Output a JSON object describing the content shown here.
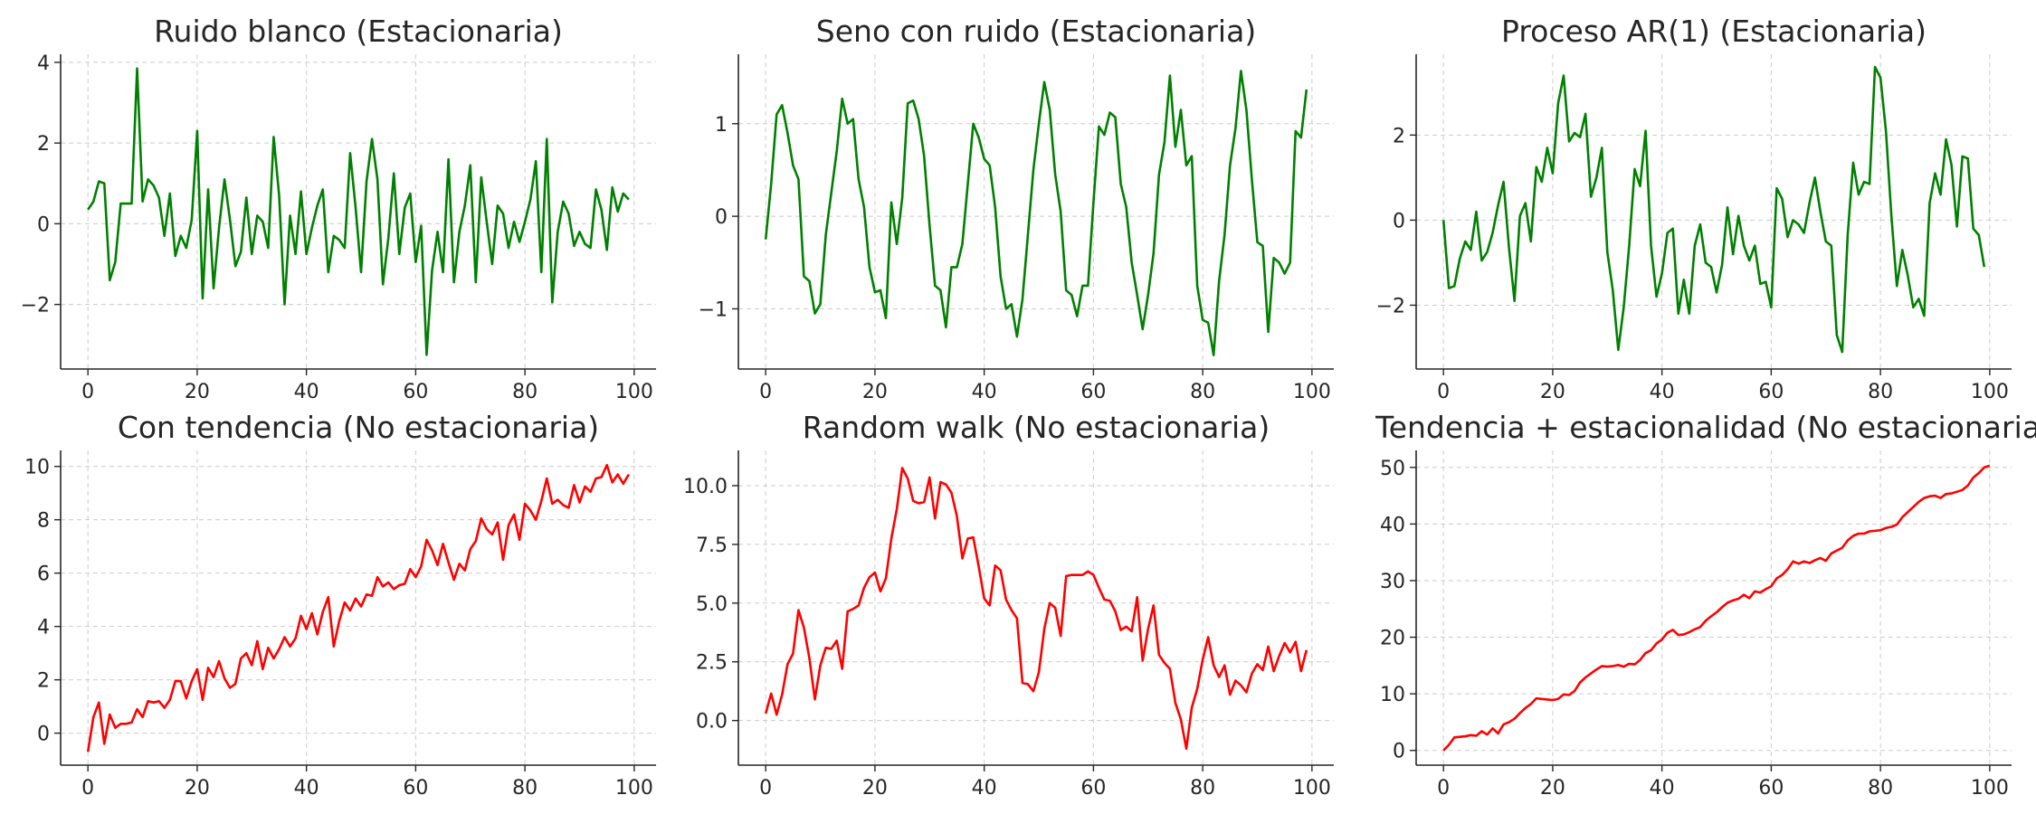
{
  "colors": {
    "stationary": "#008000",
    "non_stationary": "#ff0000",
    "grid": "#cccccc",
    "axis": "#262626"
  },
  "chart_data": [
    {
      "type": "line",
      "title": "Ruido blanco (Estacionaria)",
      "color": "#008000",
      "xlim": [
        -5,
        104
      ],
      "ylim": [
        -3.6,
        4.2
      ],
      "xticks": [
        0,
        20,
        40,
        60,
        80,
        100
      ],
      "yticks": [
        -2,
        0,
        2,
        4
      ],
      "ytick_labels": [
        "−2",
        "0",
        "2",
        "4"
      ],
      "grid": true,
      "series": [
        {
          "y": [
            0.35,
            0.55,
            1.05,
            1.0,
            -1.4,
            -0.95,
            0.5,
            0.5,
            0.5,
            3.85,
            0.55,
            1.1,
            0.95,
            0.65,
            -0.3,
            0.75,
            -0.8,
            -0.3,
            -0.6,
            0.1,
            2.3,
            -1.85,
            0.85,
            -1.6,
            -0.1,
            1.1,
            0.1,
            -1.05,
            -0.7,
            0.65,
            -0.75,
            0.2,
            0.05,
            -0.6,
            2.15,
            0.7,
            -2.0,
            0.2,
            -0.75,
            0.8,
            -0.75,
            -0.1,
            0.45,
            0.85,
            -1.2,
            -0.3,
            -0.4,
            -0.6,
            1.75,
            0.4,
            -1.2,
            1.05,
            2.1,
            1.1,
            -1.5,
            -0.35,
            1.25,
            -0.75,
            0.4,
            0.75,
            -0.95,
            -0.05,
            -3.25,
            -1.15,
            -0.2,
            -1.2,
            1.6,
            -1.45,
            -0.2,
            0.45,
            1.45,
            -1.45,
            1.15,
            0.05,
            -1.0,
            0.45,
            0.25,
            -0.6,
            0.05,
            -0.45,
            0.05,
            0.6,
            1.55,
            -1.2,
            2.1,
            -1.95,
            -0.2,
            0.55,
            0.25,
            -0.55,
            -0.2,
            -0.5,
            -0.6,
            0.85,
            0.35,
            -0.65,
            0.9,
            0.3,
            0.75,
            0.6
          ]
        }
      ]
    },
    {
      "type": "line",
      "title": "Seno con ruido (Estacionaria)",
      "color": "#008000",
      "xlim": [
        -5,
        104
      ],
      "ylim": [
        -1.65,
        1.75
      ],
      "xticks": [
        0,
        20,
        40,
        60,
        80,
        100
      ],
      "yticks": [
        -1,
        0,
        1
      ],
      "ytick_labels": [
        "−1",
        "0",
        "1"
      ],
      "grid": true,
      "series": [
        {
          "y": [
            -0.25,
            0.35,
            1.1,
            1.2,
            0.9,
            0.55,
            0.4,
            -0.65,
            -0.7,
            -1.05,
            -0.95,
            -0.2,
            0.25,
            0.7,
            1.27,
            1.0,
            1.05,
            0.4,
            0.1,
            -0.55,
            -0.82,
            -0.8,
            -1.1,
            0.15,
            -0.3,
            0.2,
            1.22,
            1.25,
            1.05,
            0.65,
            -0.1,
            -0.75,
            -0.8,
            -1.2,
            -0.55,
            -0.55,
            -0.3,
            0.35,
            1.0,
            0.85,
            0.62,
            0.55,
            0.1,
            -0.65,
            -1.0,
            -0.95,
            -1.3,
            -0.9,
            -0.2,
            0.5,
            1.0,
            1.45,
            1.15,
            0.45,
            0.05,
            -0.8,
            -0.85,
            -1.08,
            -0.75,
            -0.75,
            0.15,
            0.97,
            0.88,
            1.12,
            1.07,
            0.35,
            0.1,
            -0.5,
            -0.85,
            -1.22,
            -0.85,
            -0.4,
            0.45,
            0.8,
            1.52,
            0.75,
            1.15,
            0.55,
            0.65,
            -0.75,
            -1.12,
            -1.15,
            -1.5,
            -0.7,
            -0.2,
            0.55,
            0.95,
            1.57,
            1.15,
            0.4,
            -0.28,
            -0.32,
            -1.25,
            -0.45,
            -0.5,
            -0.62,
            -0.5,
            0.92,
            0.85,
            1.37
          ]
        }
      ]
    },
    {
      "type": "line",
      "title": "Proceso AR(1) (Estacionaria)",
      "color": "#008000",
      "xlim": [
        -5,
        104
      ],
      "ylim": [
        -3.5,
        3.9
      ],
      "xticks": [
        0,
        20,
        40,
        60,
        80,
        100
      ],
      "yticks": [
        -2,
        0,
        2
      ],
      "ytick_labels": [
        "−2",
        "0",
        "2"
      ],
      "grid": true,
      "series": [
        {
          "y": [
            0.0,
            -1.6,
            -1.55,
            -0.9,
            -0.5,
            -0.7,
            0.2,
            -0.95,
            -0.75,
            -0.3,
            0.35,
            0.9,
            -0.65,
            -1.9,
            0.1,
            0.4,
            -0.5,
            1.25,
            0.9,
            1.7,
            1.1,
            2.75,
            3.4,
            1.85,
            2.05,
            1.95,
            2.5,
            0.55,
            1.0,
            1.7,
            -0.75,
            -1.65,
            -3.05,
            -2.05,
            -0.6,
            1.2,
            0.8,
            2.1,
            -0.6,
            -1.8,
            -1.25,
            -0.3,
            -0.2,
            -2.2,
            -1.4,
            -2.2,
            -0.6,
            -0.1,
            -1.0,
            -1.1,
            -1.7,
            -1.05,
            0.3,
            -0.8,
            0.1,
            -0.6,
            -0.95,
            -0.6,
            -1.5,
            -1.45,
            -2.05,
            0.75,
            0.5,
            -0.4,
            0.0,
            -0.1,
            -0.3,
            0.4,
            1.0,
            0.2,
            -0.5,
            -0.6,
            -2.7,
            -3.1,
            -0.35,
            1.35,
            0.6,
            0.9,
            0.85,
            3.6,
            3.35,
            2.1,
            0.1,
            -1.55,
            -0.7,
            -1.3,
            -2.05,
            -1.85,
            -2.25,
            0.4,
            1.1,
            0.6,
            1.9,
            1.3,
            -0.15,
            1.5,
            1.45,
            -0.2,
            -0.35,
            -1.1
          ]
        }
      ]
    },
    {
      "type": "line",
      "title": "Con tendencia (No estacionaria)",
      "color": "#ff0000",
      "xlim": [
        -5,
        104
      ],
      "ylim": [
        -1.2,
        10.6
      ],
      "xticks": [
        0,
        20,
        40,
        60,
        80,
        100
      ],
      "yticks": [
        0,
        2,
        4,
        6,
        8,
        10
      ],
      "ytick_labels": [
        "0",
        "2",
        "4",
        "6",
        "8",
        "10"
      ],
      "grid": true,
      "series": [
        {
          "y": [
            -0.7,
            0.6,
            1.15,
            -0.4,
            0.7,
            0.2,
            0.35,
            0.35,
            0.4,
            0.9,
            0.6,
            1.2,
            1.15,
            1.2,
            0.95,
            1.25,
            1.95,
            1.95,
            1.3,
            1.95,
            2.4,
            1.25,
            2.45,
            2.1,
            2.7,
            2.05,
            1.7,
            1.85,
            2.8,
            3.0,
            2.55,
            3.45,
            2.4,
            3.2,
            2.8,
            3.15,
            3.6,
            3.25,
            3.55,
            4.4,
            3.9,
            4.5,
            3.7,
            4.55,
            5.1,
            3.25,
            4.2,
            4.9,
            4.6,
            5.05,
            4.75,
            5.2,
            5.15,
            5.85,
            5.5,
            5.65,
            5.4,
            5.55,
            5.6,
            6.15,
            5.85,
            6.25,
            7.25,
            6.85,
            6.3,
            7.1,
            6.4,
            5.75,
            6.35,
            6.1,
            6.9,
            7.2,
            8.05,
            7.65,
            7.45,
            7.9,
            6.5,
            7.8,
            8.2,
            7.25,
            8.6,
            8.35,
            8.0,
            8.7,
            9.55,
            8.6,
            8.75,
            8.55,
            8.45,
            9.3,
            8.65,
            9.25,
            9.05,
            9.55,
            9.6,
            10.05,
            9.4,
            9.7,
            9.35,
            9.7
          ]
        }
      ]
    },
    {
      "type": "line",
      "title": "Random walk (No estacionaria)",
      "color": "#ff0000",
      "xlim": [
        -5,
        104
      ],
      "ylim": [
        -1.9,
        11.5
      ],
      "xticks": [
        0,
        20,
        40,
        60,
        80,
        100
      ],
      "yticks": [
        0,
        2.5,
        5,
        7.5,
        10
      ],
      "ytick_labels": [
        "0.0",
        "2.5",
        "5.0",
        "7.5",
        "10.0"
      ],
      "grid": true,
      "series": [
        {
          "y": [
            0.3,
            1.15,
            0.25,
            1.1,
            2.4,
            2.85,
            4.7,
            3.95,
            2.65,
            0.9,
            2.35,
            3.1,
            3.05,
            3.4,
            2.2,
            4.65,
            4.75,
            4.9,
            5.65,
            6.1,
            6.3,
            5.5,
            6.05,
            7.75,
            9.0,
            10.75,
            10.3,
            9.35,
            9.25,
            9.3,
            10.35,
            8.6,
            10.15,
            10.05,
            9.7,
            8.7,
            6.9,
            7.75,
            7.8,
            6.55,
            5.2,
            4.9,
            6.6,
            6.4,
            5.15,
            4.7,
            4.35,
            1.6,
            1.55,
            1.25,
            2.05,
            3.9,
            5.0,
            4.8,
            3.6,
            6.15,
            6.2,
            6.2,
            6.2,
            6.35,
            6.2,
            5.65,
            5.15,
            5.1,
            4.65,
            3.85,
            4.0,
            3.8,
            5.25,
            2.55,
            3.9,
            4.9,
            2.8,
            2.45,
            2.2,
            0.75,
            0.05,
            -1.2,
            0.55,
            1.35,
            2.6,
            3.55,
            2.35,
            1.85,
            2.35,
            1.1,
            1.7,
            1.5,
            1.2,
            2.0,
            2.4,
            2.15,
            3.15,
            2.1,
            2.75,
            3.3,
            2.9,
            3.35,
            2.1,
            3.0
          ]
        }
      ]
    },
    {
      "type": "line",
      "title": "Tendencia + estacionalidad (No estacionaria)",
      "color": "#ff0000",
      "xlim": [
        -5,
        104
      ],
      "ylim": [
        -2.6,
        53
      ],
      "xticks": [
        0,
        20,
        40,
        60,
        80,
        100
      ],
      "yticks": [
        0,
        10,
        20,
        30,
        40,
        50
      ],
      "ytick_labels": [
        "0",
        "10",
        "20",
        "30",
        "40",
        "50"
      ],
      "grid": true,
      "series": [
        {
          "y": [
            0.0,
            1.0,
            2.3,
            2.4,
            2.5,
            2.7,
            2.6,
            3.4,
            2.8,
            3.9,
            3.0,
            4.6,
            5.0,
            5.6,
            6.6,
            7.5,
            8.2,
            9.2,
            9.1,
            9.0,
            8.9,
            9.1,
            9.9,
            9.8,
            10.5,
            12.0,
            12.9,
            13.6,
            14.3,
            14.9,
            14.8,
            14.9,
            15.1,
            14.8,
            15.3,
            15.2,
            16.0,
            17.2,
            17.7,
            18.9,
            19.6,
            20.8,
            21.3,
            20.4,
            20.5,
            20.9,
            21.4,
            21.8,
            22.9,
            23.7,
            24.4,
            25.3,
            26.1,
            26.5,
            26.8,
            27.5,
            26.9,
            28.1,
            27.9,
            28.5,
            29.0,
            30.4,
            31.0,
            32.0,
            33.4,
            33.0,
            33.4,
            33.1,
            33.6,
            34.0,
            33.5,
            34.8,
            35.3,
            35.8,
            37.1,
            37.9,
            38.3,
            38.3,
            38.7,
            38.8,
            38.9,
            39.3,
            39.5,
            39.9,
            41.2,
            42.1,
            43.0,
            43.9,
            44.6,
            44.9,
            45.0,
            44.6,
            45.3,
            45.4,
            45.7,
            46.0,
            46.8,
            48.2,
            49.0,
            50.0,
            50.3
          ]
        }
      ]
    }
  ]
}
